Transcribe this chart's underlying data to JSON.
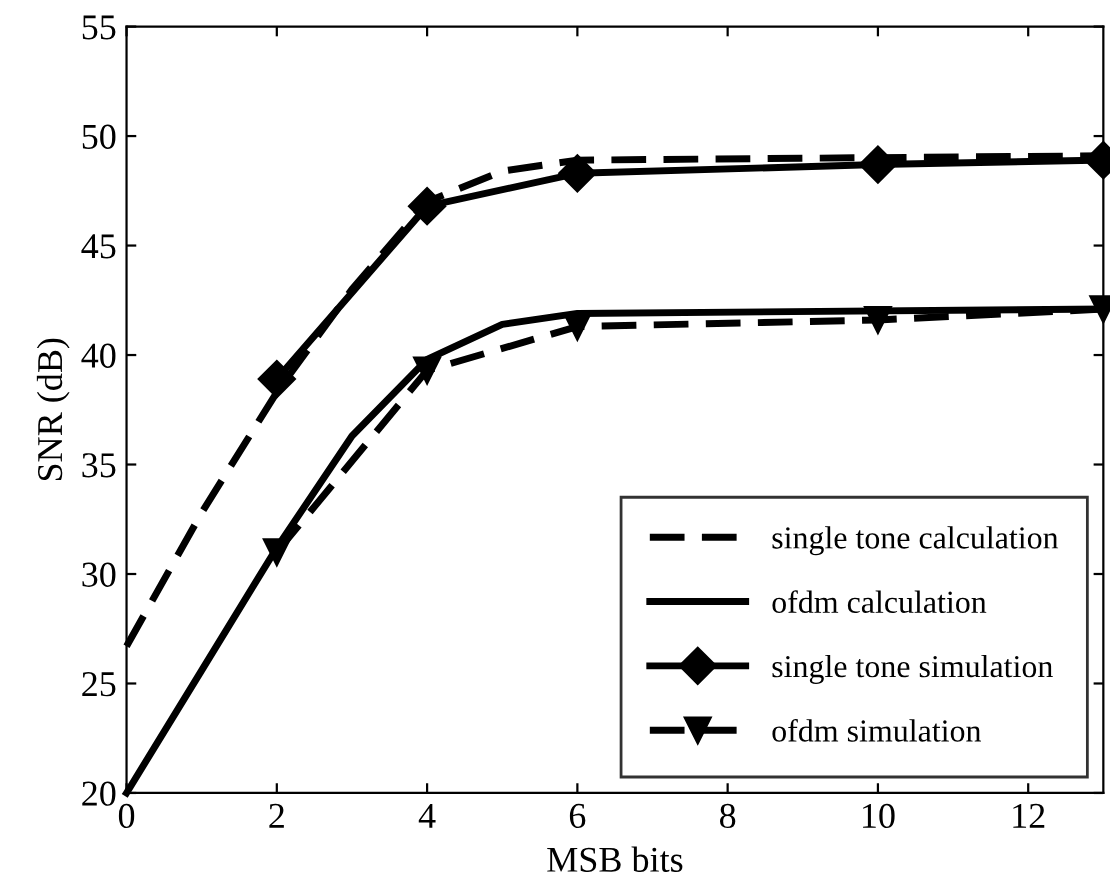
{
  "chart_data": {
    "type": "line",
    "xlabel": "MSB bits",
    "ylabel": "SNR (dB)",
    "xlim": [
      0,
      13
    ],
    "ylim": [
      20,
      55
    ],
    "xticks": [
      0,
      2,
      4,
      6,
      8,
      10,
      12
    ],
    "yticks": [
      20,
      25,
      30,
      35,
      40,
      45,
      50,
      55
    ],
    "grid": false,
    "legend": "bottom right",
    "series": [
      {
        "name": "single tone calculation",
        "color": "#000000",
        "line_style": "dashed",
        "marker": "none",
        "x": [
          0,
          1,
          2,
          3,
          4,
          5,
          6,
          13
        ],
        "values": [
          26.7,
          32.8,
          38.3,
          43.0,
          47.0,
          48.4,
          48.9,
          49.1
        ]
      },
      {
        "name": "ofdm calculation",
        "color": "#000000",
        "line_style": "solid",
        "marker": "none",
        "x": [
          0,
          1,
          2,
          3,
          4,
          5,
          6,
          13
        ],
        "values": [
          20,
          25.6,
          31.2,
          36.3,
          39.8,
          41.4,
          41.9,
          42.1
        ]
      },
      {
        "name": "single tone simulation",
        "color": "#000000",
        "line_style": "solid",
        "marker": "diamond",
        "x": [
          2,
          4,
          6,
          10,
          13
        ],
        "values": [
          38.9,
          46.8,
          48.3,
          48.7,
          48.9
        ]
      },
      {
        "name": "ofdm simulation",
        "color": "#000000",
        "line_style": "dashed",
        "marker": "triangle",
        "x": [
          2,
          4,
          6,
          10,
          13
        ],
        "values": [
          31.0,
          39.3,
          41.3,
          41.6,
          42.1
        ]
      }
    ]
  }
}
